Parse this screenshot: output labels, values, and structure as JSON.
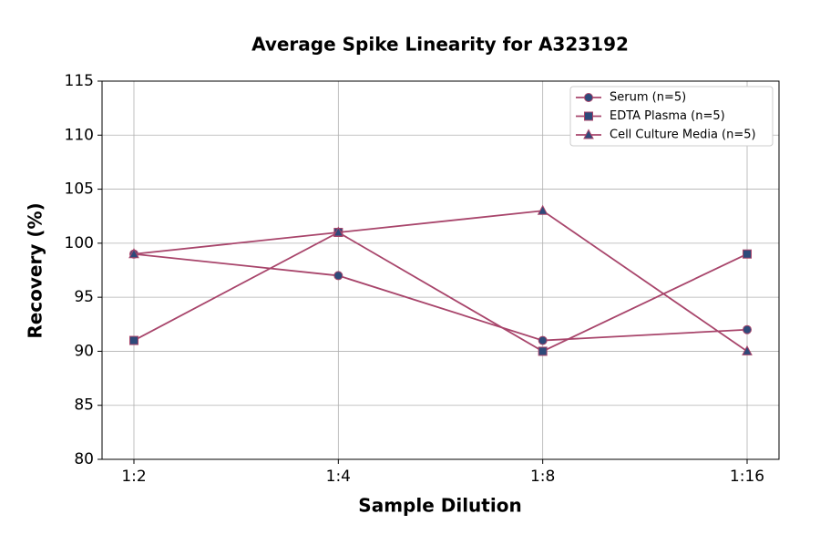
{
  "chart_data": {
    "type": "line",
    "title": "Average Spike Linearity for A323192",
    "x_label": "Sample Dilution",
    "y_label": "Recovery (%)",
    "categories": [
      "1:2",
      "1:4",
      "1:8",
      "1:16"
    ],
    "series": [
      {
        "name": "Serum (n=5)",
        "color": "#a8456b",
        "marker": "circle",
        "marker_color": "#2e4a7a",
        "values": [
          99,
          97,
          91,
          92
        ]
      },
      {
        "name": "EDTA Plasma (n=5)",
        "color": "#a8456b",
        "marker": "square",
        "marker_color": "#2e4a7a",
        "values": [
          91,
          101,
          90,
          99
        ]
      },
      {
        "name": "Cell Culture Media (n=5)",
        "color": "#a8456b",
        "marker": "triangle",
        "marker_color": "#2e4a7a",
        "values": [
          99,
          101,
          103,
          90
        ]
      }
    ],
    "ylim": [
      80,
      115
    ],
    "yticks": [
      80,
      85,
      90,
      95,
      100,
      105,
      110,
      115
    ],
    "grid": true,
    "legend": "upper right"
  }
}
